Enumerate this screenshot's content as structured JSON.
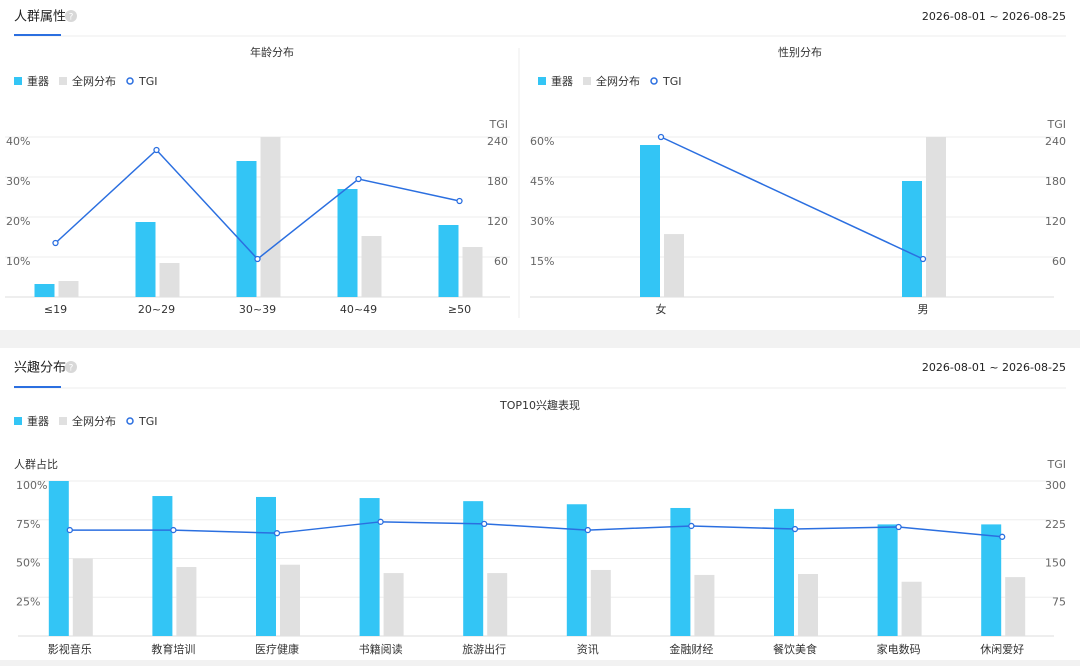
{
  "sections": [
    {
      "title": "人群属性",
      "date_range": "2026-08-01 ~ 2026-08-25"
    },
    {
      "title": "兴趣分布",
      "date_range": "2026-08-01 ~ 2026-08-25"
    }
  ],
  "chart_data": [
    {
      "type": "combo",
      "title": "年龄分布",
      "y2_label": "TGI",
      "categories": [
        "≤19",
        "20~29",
        "30~39",
        "40~49",
        "≥50"
      ],
      "series": [
        {
          "name": "重器",
          "color": "#33c5f5",
          "values": [
            3.25,
            18.75,
            34,
            27,
            18
          ]
        },
        {
          "name": "全网分布",
          "color": "#e0e0e0",
          "values": [
            4,
            8.5,
            40,
            15.25,
            12.5
          ]
        },
        {
          "name": "TGI",
          "color": "#2b6fe0",
          "axis": "y2",
          "values": [
            81,
            220.5,
            57,
            177,
            144
          ]
        }
      ],
      "ylim": [
        0,
        40
      ],
      "yticks": [
        {
          "value": 10,
          "label": "10%"
        },
        {
          "value": 20,
          "label": "20%"
        },
        {
          "value": 30,
          "label": "30%"
        },
        {
          "value": 40,
          "label": "40%"
        }
      ],
      "y2lim": [
        0,
        240
      ],
      "y2ticks": [
        60,
        120,
        180,
        240
      ],
      "grid": true
    },
    {
      "type": "combo",
      "title": "性别分布",
      "y2_label": "TGI",
      "categories": [
        "女",
        "男"
      ],
      "series": [
        {
          "name": "重器",
          "color": "#33c5f5",
          "values": [
            57,
            43.5
          ]
        },
        {
          "name": "全网分布",
          "color": "#e0e0e0",
          "values": [
            23.6,
            60
          ]
        },
        {
          "name": "TGI",
          "color": "#2b6fe0",
          "axis": "y2",
          "values": [
            240,
            57
          ]
        }
      ],
      "ylim": [
        0,
        60
      ],
      "yticks": [
        {
          "value": 15,
          "label": "15%"
        },
        {
          "value": 30,
          "label": "30%"
        },
        {
          "value": 45,
          "label": "45%"
        },
        {
          "value": 60,
          "label": "60%"
        }
      ],
      "y2lim": [
        0,
        240
      ],
      "y2ticks": [
        60,
        120,
        180,
        240
      ],
      "grid": true
    },
    {
      "type": "combo",
      "title": "TOP10兴趣表现",
      "y_label": "人群占比",
      "y2_label": "TGI",
      "categories": [
        "影视音乐",
        "教育培训",
        "医疗健康",
        "书籍阅读",
        "旅游出行",
        "资讯",
        "金融财经",
        "餐饮美食",
        "家电数码",
        "休闲爱好"
      ],
      "series": [
        {
          "name": "重器",
          "color": "#33c5f5",
          "values": [
            100,
            90.3,
            89.7,
            89,
            87,
            85,
            82.6,
            82,
            72,
            72
          ]
        },
        {
          "name": "全网分布",
          "color": "#e0e0e0",
          "values": [
            50,
            44.5,
            46,
            40.6,
            40.6,
            42.6,
            39.4,
            40,
            35,
            38
          ]
        },
        {
          "name": "TGI",
          "color": "#2b6fe0",
          "axis": "y2",
          "values": [
            205,
            205,
            199,
            221,
            217,
            205,
            213,
            207,
            211,
            192
          ]
        }
      ],
      "ylim": [
        0,
        100
      ],
      "yticks": [
        {
          "value": 25,
          "label": "25%"
        },
        {
          "value": 50,
          "label": "50%"
        },
        {
          "value": 75,
          "label": "75%"
        },
        {
          "value": 100,
          "label": "100%"
        }
      ],
      "y2lim": [
        0,
        300
      ],
      "y2ticks": [
        75,
        150,
        225,
        300
      ],
      "grid": true
    }
  ]
}
